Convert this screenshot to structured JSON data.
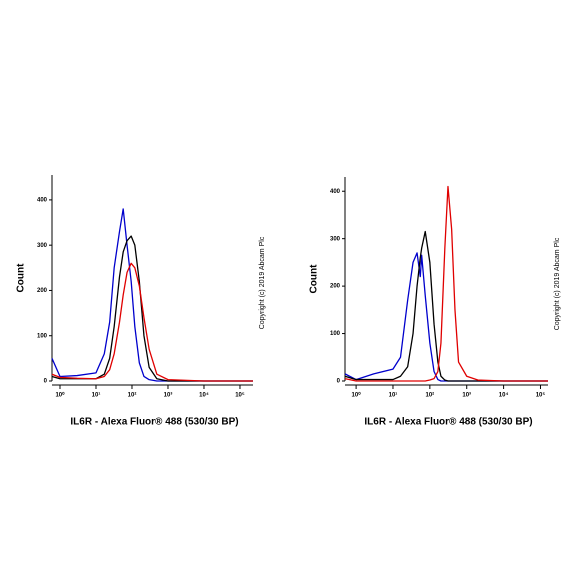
{
  "chart_data": [
    {
      "type": "line",
      "xscale": "log",
      "xlabel": "IL6R - Alexa Fluor® 488 (530/30 BP)",
      "ylabel": "Count",
      "annotation": "Copyright (c) 2019 Abcam Plc",
      "x": [
        0.6,
        1,
        3,
        10,
        17,
        24,
        32,
        45,
        57,
        73,
        95,
        120,
        160,
        215,
        300,
        490,
        1000,
        10000,
        230000
      ],
      "series": [
        {
          "color": "#0000cc",
          "values": [
            50,
            10,
            12,
            18,
            60,
            130,
            250,
            330,
            380,
            300,
            220,
            120,
            40,
            10,
            3,
            0,
            0,
            0,
            0
          ]
        },
        {
          "color": "#000000",
          "values": [
            10,
            5,
            5,
            5,
            15,
            50,
            120,
            230,
            285,
            310,
            320,
            300,
            220,
            100,
            30,
            5,
            0,
            0,
            0
          ]
        },
        {
          "color": "#e00000",
          "values": [
            15,
            8,
            6,
            5,
            10,
            25,
            60,
            130,
            190,
            240,
            260,
            250,
            210,
            140,
            70,
            15,
            3,
            0,
            0
          ]
        }
      ],
      "xlim": [
        0.6,
        230000
      ],
      "xticks": [
        {
          "value": 1,
          "label": "10⁰"
        },
        {
          "value": 10,
          "label": "10¹"
        },
        {
          "value": 100,
          "label": "10²"
        },
        {
          "value": 1000,
          "label": "10³"
        },
        {
          "value": 10000,
          "label": "10⁴"
        },
        {
          "value": 100000,
          "label": "10⁵"
        }
      ],
      "ylim": [
        0,
        455
      ],
      "yticks": [
        0,
        100,
        200,
        300,
        400
      ]
    },
    {
      "type": "line",
      "xscale": "log",
      "xlabel": "IL6R - Alexa Fluor® 488 (530/30 BP)",
      "ylabel": "Count",
      "annotation": "Copyright (c) 2019 Abcam Plc",
      "x": [
        0.5,
        1,
        3,
        10,
        16,
        25,
        35,
        45,
        55,
        60,
        75,
        100,
        130,
        165,
        200,
        255,
        310,
        390,
        480,
        600,
        1000,
        2000,
        10000,
        160000
      ],
      "series": [
        {
          "color": "#0000cc",
          "values": [
            15,
            3,
            15,
            25,
            50,
            170,
            250,
            270,
            220,
            265,
            180,
            80,
            20,
            3,
            0,
            0,
            0,
            0,
            0,
            0,
            0,
            0,
            0,
            0
          ]
        },
        {
          "color": "#000000",
          "values": [
            10,
            3,
            3,
            3,
            10,
            30,
            100,
            200,
            260,
            280,
            315,
            250,
            120,
            40,
            10,
            2,
            0,
            0,
            0,
            0,
            0,
            0,
            0,
            0
          ]
        },
        {
          "color": "#e00000",
          "values": [
            5,
            0,
            0,
            0,
            0,
            0,
            0,
            0,
            0,
            0,
            0,
            2,
            5,
            20,
            80,
            280,
            410,
            320,
            150,
            40,
            10,
            2,
            0,
            0
          ]
        }
      ],
      "xlim": [
        0.5,
        160000
      ],
      "xticks": [
        {
          "value": 1,
          "label": "10⁰"
        },
        {
          "value": 10,
          "label": "10¹"
        },
        {
          "value": 100,
          "label": "10²"
        },
        {
          "value": 1000,
          "label": "10³"
        },
        {
          "value": 10000,
          "label": "10⁴"
        },
        {
          "value": 100000,
          "label": "10⁵"
        }
      ],
      "ylim": [
        0,
        430
      ],
      "yticks": [
        0,
        100,
        200,
        300,
        400
      ]
    }
  ]
}
